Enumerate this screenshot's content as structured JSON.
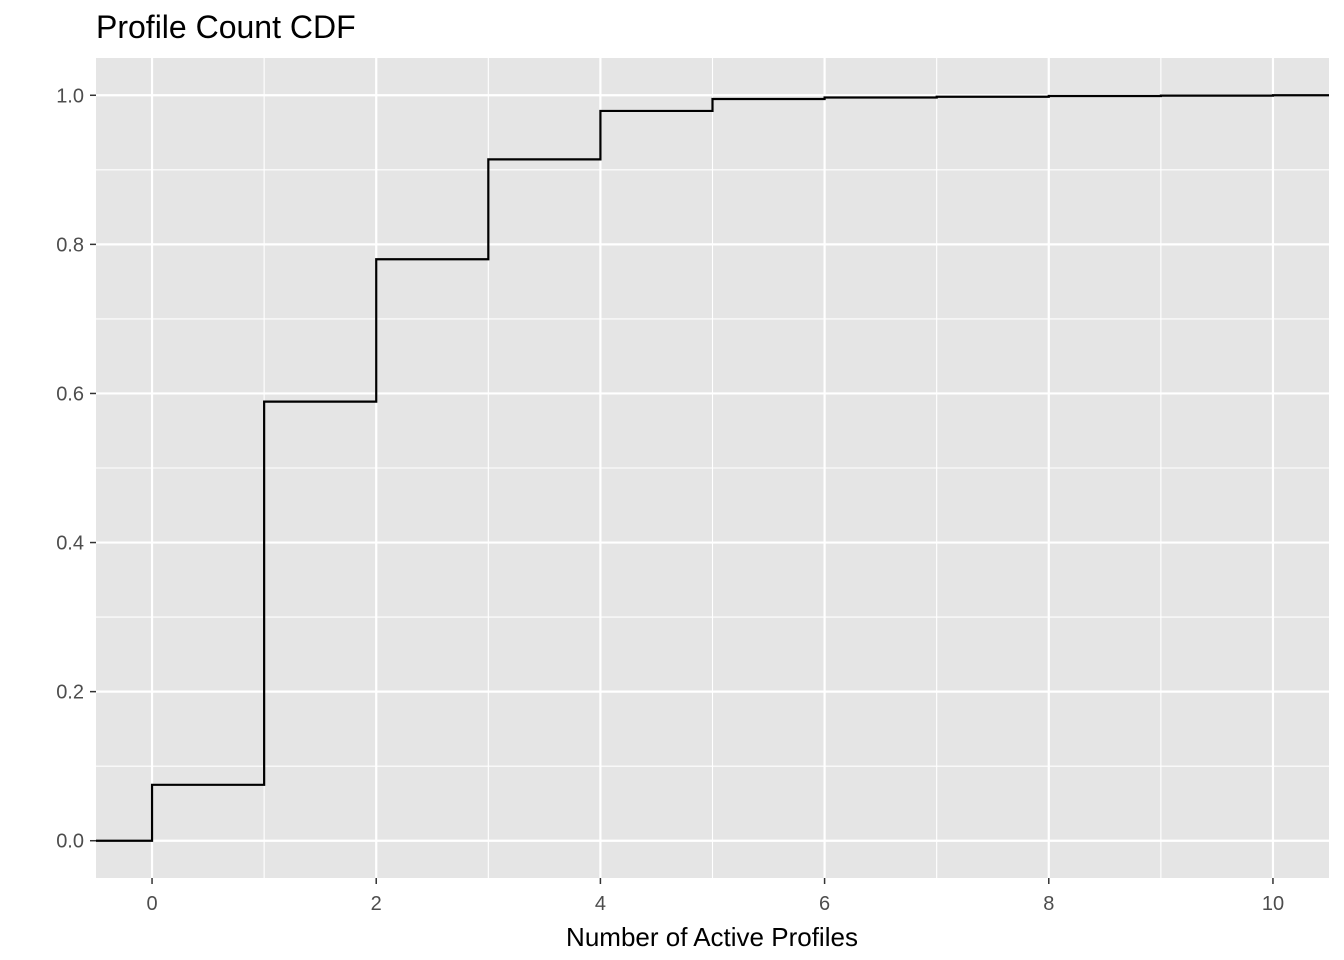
{
  "chart_data": {
    "type": "line",
    "step": true,
    "title": "Profile Count CDF",
    "xlabel": "Number of Active Profiles",
    "ylabel": "",
    "xlim": [
      -0.5,
      10.5
    ],
    "ylim": [
      -0.05,
      1.05
    ],
    "x_ticks": [
      0,
      2,
      4,
      6,
      8,
      10
    ],
    "x_tick_labels": [
      "0",
      "2",
      "4",
      "6",
      "8",
      "10"
    ],
    "y_ticks": [
      0.0,
      0.2,
      0.4,
      0.6,
      0.8,
      1.0
    ],
    "y_tick_labels": [
      "0.0",
      "0.2",
      "0.4",
      "0.6",
      "0.8",
      "1.0"
    ],
    "grid": true,
    "legend": "none",
    "colors": {
      "panel": "#e5e5e5",
      "grid": "#ffffff",
      "line": "#000000",
      "tick_label": "#4d4d4d",
      "axis_tick": "#333333"
    },
    "series": [
      {
        "x": [
          0,
          1,
          2,
          3,
          4,
          5,
          6,
          7,
          8,
          9,
          10
        ],
        "y": [
          0.075,
          0.589,
          0.78,
          0.914,
          0.979,
          0.995,
          0.997,
          0.998,
          0.999,
          0.9995,
          1.0
        ]
      }
    ]
  }
}
